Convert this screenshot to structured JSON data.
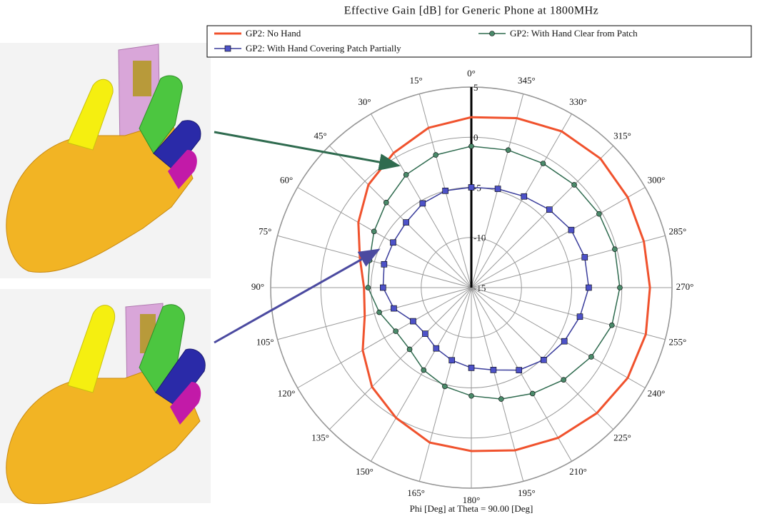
{
  "chart_data": {
    "type": "polar",
    "title": "Effective Gain [dB] for Generic Phone at 1800MHz",
    "xlabel": "Phi [Deg] at Theta = 90.00 [Deg]",
    "theta": [
      0,
      15,
      30,
      45,
      60,
      75,
      90,
      105,
      120,
      135,
      150,
      165,
      180,
      195,
      210,
      225,
      240,
      255,
      270,
      285,
      300,
      315,
      330,
      345
    ],
    "series": [
      {
        "name": "GP2: No Hand",
        "color": "#f0522d",
        "marker": "none",
        "values": [
          2,
          1.5,
          0.5,
          -0.5,
          -2,
          -3.5,
          -4.3,
          -4,
          -2.5,
          -1,
          0,
          1,
          1.3,
          1.8,
          2.3,
          2.7,
          3,
          3,
          2.8,
          2.8,
          3,
          3.2,
          3,
          2.5
        ]
      },
      {
        "name": "GP2: With Hand Clear from Patch",
        "color": "#2f6b4f",
        "marker": "circle",
        "values": [
          -0.9,
          -1.3,
          -2,
          -3,
          -3.8,
          -4.5,
          -4.7,
          -5.5,
          -6.3,
          -6.3,
          -5.5,
          -4.8,
          -4.2,
          -3.5,
          -2.8,
          -2,
          -1.2,
          -0.5,
          -0.2,
          -0.2,
          -0.3,
          -0.5,
          -0.7,
          -0.8
        ]
      },
      {
        "name": "GP2: With Hand Covering Patch Partially",
        "color": "#3a3d9c",
        "marker": "square",
        "values": [
          -5,
          -5,
          -5.3,
          -5.8,
          -6,
          -6,
          -6.2,
          -7,
          -8.3,
          -8.5,
          -8,
          -7.5,
          -7,
          -6.5,
          -5.5,
          -4.8,
          -4.3,
          -3.8,
          -3.3,
          -3.3,
          -3.5,
          -4,
          -4.5,
          -4.8
        ]
      }
    ],
    "rlim": [
      -15,
      5
    ],
    "rticks": [
      -15,
      -10,
      -5,
      0,
      5
    ],
    "thetaticks": [
      {
        "value": 0,
        "label": "0°"
      },
      {
        "value": 15,
        "label": "15°"
      },
      {
        "value": 30,
        "label": "30°"
      },
      {
        "value": 45,
        "label": "45°"
      },
      {
        "value": 60,
        "label": "60°"
      },
      {
        "value": 75,
        "label": "75°"
      },
      {
        "value": 90,
        "label": "90°"
      },
      {
        "value": 105,
        "label": "105°"
      },
      {
        "value": 120,
        "label": "120°"
      },
      {
        "value": 135,
        "label": "135°"
      },
      {
        "value": 150,
        "label": "150°"
      },
      {
        "value": 165,
        "label": "165°"
      },
      {
        "value": 180,
        "label": "180°"
      },
      {
        "value": 195,
        "label": "195°"
      },
      {
        "value": 210,
        "label": "210°"
      },
      {
        "value": 225,
        "label": "225°"
      },
      {
        "value": 240,
        "label": "240°"
      },
      {
        "value": 255,
        "label": "255°"
      },
      {
        "value": 270,
        "label": "270°"
      },
      {
        "value": 285,
        "label": "285°"
      },
      {
        "value": 300,
        "label": "300°"
      },
      {
        "value": 315,
        "label": "315°"
      },
      {
        "value": 330,
        "label": "330°"
      },
      {
        "value": 345,
        "label": "345°"
      }
    ],
    "grid": true
  }
}
